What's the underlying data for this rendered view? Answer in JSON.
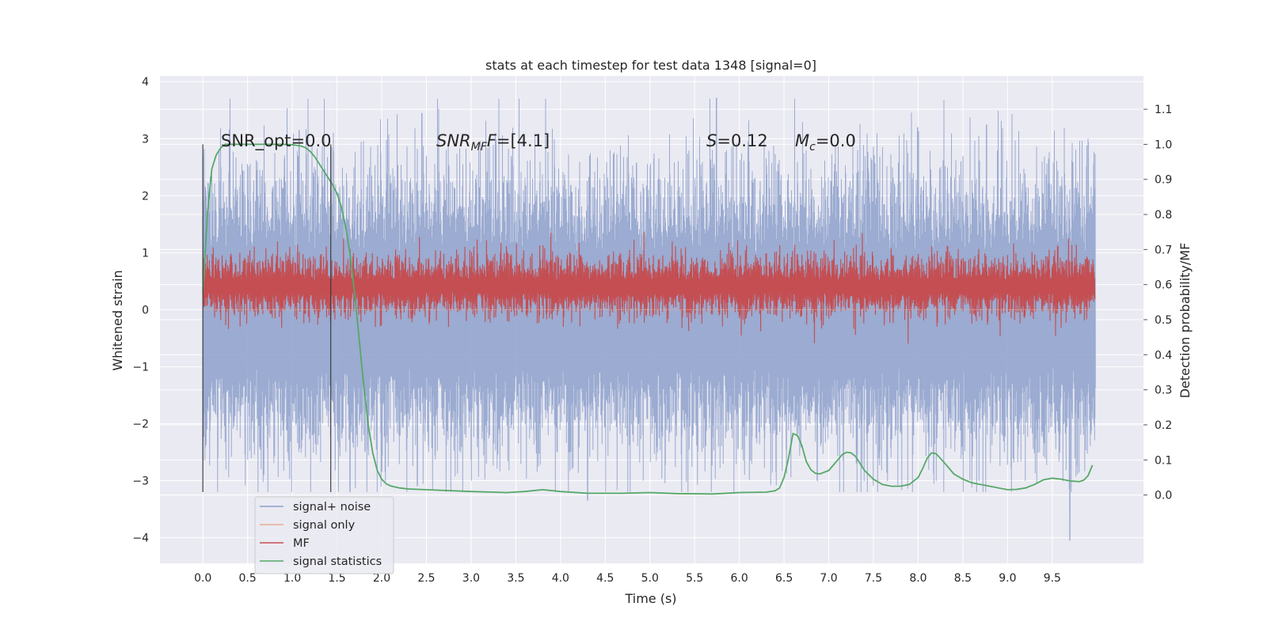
{
  "chart_data": {
    "type": "line",
    "title": "stats at each timestep for test data 1348 [signal=0]",
    "xlabel": "Time (s)",
    "ylabel": "Whitened strain",
    "y2label": "Detection probability/MF",
    "xlim": [
      -0.48,
      10.52
    ],
    "ylim": [
      -4.45,
      4.1
    ],
    "y2lim": [
      -0.195,
      1.195
    ],
    "xticks": [
      "0.0",
      "0.5",
      "1.0",
      "1.5",
      "2.0",
      "2.5",
      "3.0",
      "3.5",
      "4.0",
      "4.5",
      "5.0",
      "5.5",
      "6.0",
      "6.5",
      "7.0",
      "7.5",
      "8.0",
      "8.5",
      "9.0",
      "9.5"
    ],
    "yticks": [
      "4",
      "3",
      "2",
      "1",
      "0",
      "−1",
      "−2",
      "−3",
      "−4"
    ],
    "y2ticks": [
      "1.1",
      "1.0",
      "0.9",
      "0.8",
      "0.7",
      "0.6",
      "0.5",
      "0.4",
      "0.3",
      "0.2",
      "0.1",
      "0.0"
    ],
    "grid": true,
    "legend_position": "lower-left",
    "annotations": {
      "snr_opt": "SNR_opt=0.0",
      "snr_mf_main": "SNR",
      "snr_mf_sub": "MF",
      "snr_mf_value": "=[4.1]",
      "s_main": "S",
      "s_value": "=0.12",
      "mc_main": "M",
      "mc_sub": "c",
      "mc_value": "=0.0"
    },
    "vlines_x": [
      0.0,
      1.43
    ],
    "series": [
      {
        "name": "signal+ noise",
        "axis": "left",
        "color": "#8da0cb",
        "description_range": [
          -3.2,
          3.7
        ],
        "t_range": [
          0.0,
          9.98
        ],
        "envelope_upper_typ": 1.8,
        "envelope_lower_typ": -1.8,
        "peaks": [
          [
            1.08,
            3.15
          ],
          [
            2.45,
            3.45
          ],
          [
            5.75,
            3.72
          ],
          [
            9.7,
            -4.05
          ],
          [
            4.3,
            -3.35
          ],
          [
            8.0,
            3.2
          ],
          [
            8.77,
            3.25
          ],
          [
            1.65,
            -3.2
          ]
        ]
      },
      {
        "name": "signal only",
        "axis": "left",
        "color": "#e8a98f",
        "values_constant": 0.0
      },
      {
        "name": "MF",
        "axis": "right",
        "color": "#c44e52",
        "center": 0.595,
        "spread": 0.045,
        "t_range": [
          0.0,
          9.98
        ]
      },
      {
        "name": "signal statistics",
        "axis": "right",
        "color": "#55a868",
        "x": [
          0.0,
          0.05,
          0.1,
          0.15,
          0.2,
          0.25,
          0.3,
          0.4,
          0.5,
          0.6,
          0.7,
          0.8,
          0.9,
          1.0,
          1.1,
          1.15,
          1.2,
          1.25,
          1.3,
          1.35,
          1.4,
          1.45,
          1.5,
          1.55,
          1.6,
          1.65,
          1.7,
          1.75,
          1.8,
          1.85,
          1.9,
          1.95,
          2.0,
          2.05,
          2.1,
          2.2,
          2.3,
          2.5,
          3.0,
          3.4,
          3.6,
          3.8,
          4.0,
          4.3,
          4.7,
          5.0,
          5.3,
          5.7,
          6.0,
          6.3,
          6.4,
          6.45,
          6.5,
          6.55,
          6.6,
          6.65,
          6.7,
          6.75,
          6.8,
          6.85,
          6.9,
          7.0,
          7.1,
          7.15,
          7.2,
          7.25,
          7.3,
          7.4,
          7.5,
          7.6,
          7.7,
          7.8,
          7.9,
          8.0,
          8.05,
          8.1,
          8.15,
          8.2,
          8.3,
          8.4,
          8.5,
          8.6,
          8.8,
          9.0,
          9.1,
          9.2,
          9.3,
          9.4,
          9.5,
          9.6,
          9.7,
          9.8,
          9.85,
          9.9,
          9.95
        ],
        "values": [
          0.58,
          0.8,
          0.93,
          0.97,
          0.99,
          1.0,
          1.0,
          1.0,
          1.0,
          1.0,
          1.0,
          1.0,
          1.0,
          0.999,
          0.995,
          0.99,
          0.98,
          0.965,
          0.945,
          0.925,
          0.905,
          0.885,
          0.86,
          0.82,
          0.76,
          0.68,
          0.57,
          0.44,
          0.31,
          0.2,
          0.12,
          0.07,
          0.045,
          0.032,
          0.026,
          0.02,
          0.017,
          0.015,
          0.01,
          0.007,
          0.01,
          0.015,
          0.01,
          0.005,
          0.005,
          0.007,
          0.004,
          0.003,
          0.007,
          0.008,
          0.012,
          0.02,
          0.05,
          0.105,
          0.175,
          0.17,
          0.14,
          0.095,
          0.072,
          0.062,
          0.06,
          0.07,
          0.1,
          0.115,
          0.122,
          0.12,
          0.11,
          0.07,
          0.045,
          0.03,
          0.025,
          0.025,
          0.03,
          0.05,
          0.075,
          0.105,
          0.12,
          0.118,
          0.09,
          0.06,
          0.045,
          0.035,
          0.025,
          0.015,
          0.016,
          0.02,
          0.03,
          0.043,
          0.048,
          0.045,
          0.04,
          0.038,
          0.042,
          0.055,
          0.085
        ]
      }
    ]
  }
}
